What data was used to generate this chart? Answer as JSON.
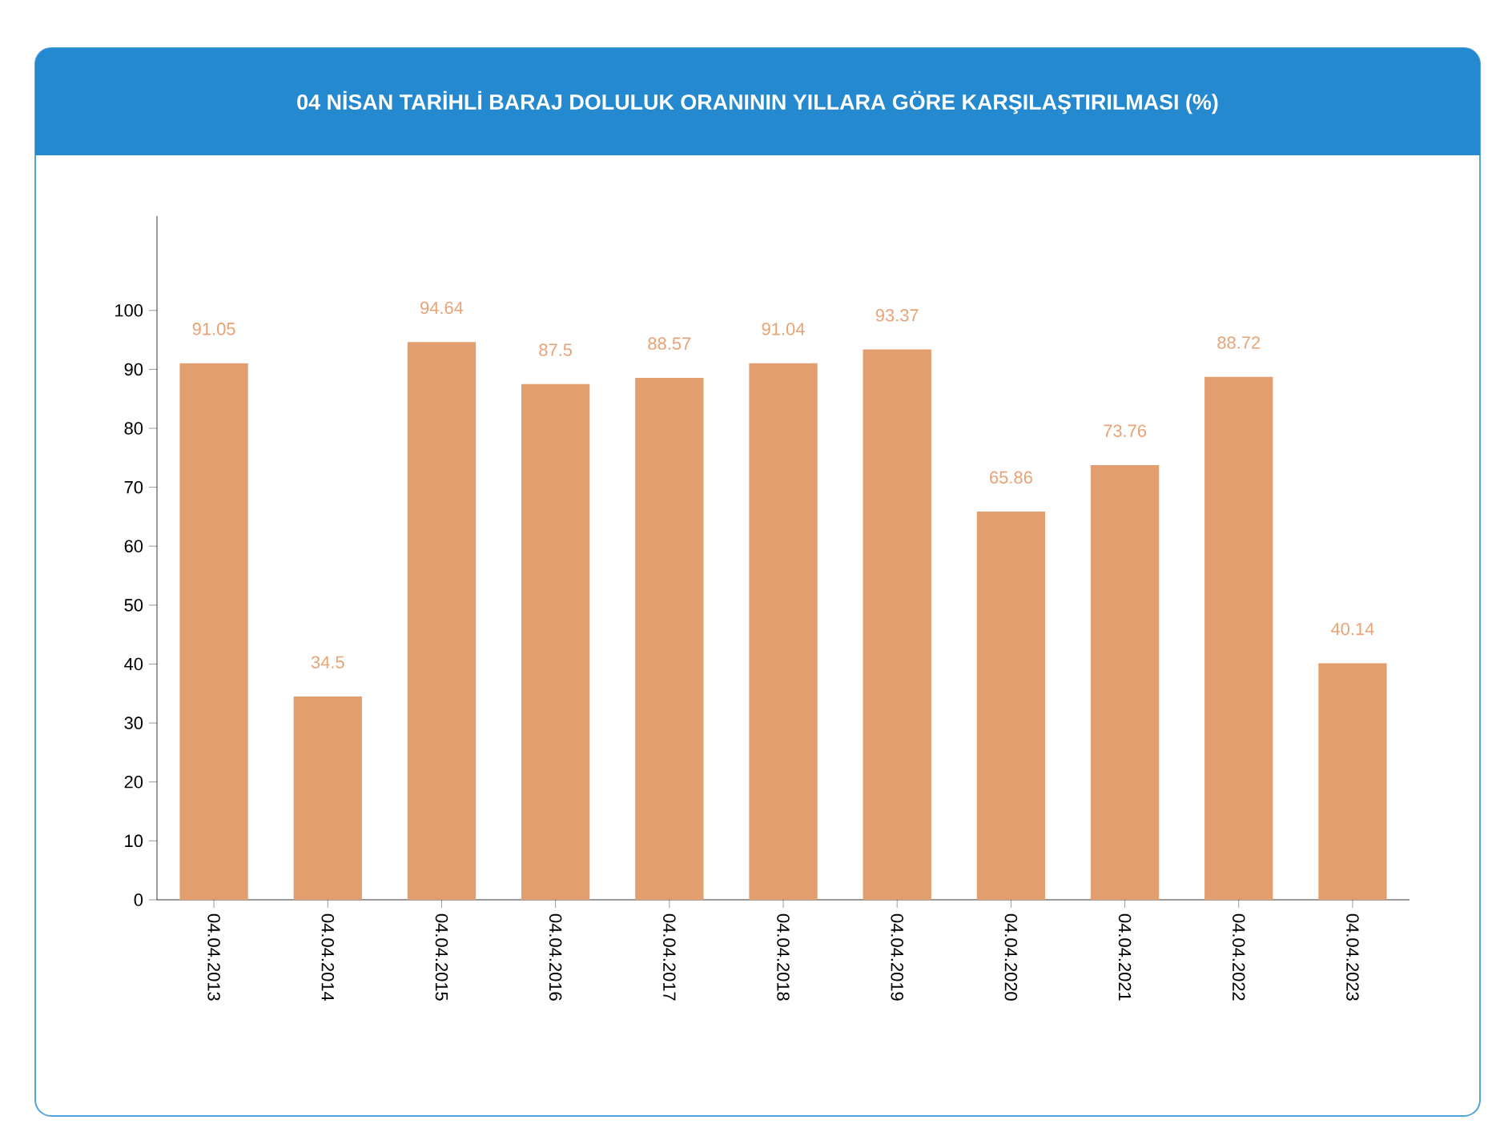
{
  "chart_data": {
    "type": "bar",
    "title": "04 NİSAN TARİHLİ BARAJ DOLULUK ORANININ YILLARA GÖRE KARŞILAŞTIRILMASI (%)",
    "categories": [
      "04.04.2013",
      "04.04.2014",
      "04.04.2015",
      "04.04.2016",
      "04.04.2017",
      "04.04.2018",
      "04.04.2019",
      "04.04.2020",
      "04.04.2021",
      "04.04.2022",
      "04.04.2023"
    ],
    "values": [
      91.05,
      34.5,
      94.64,
      87.5,
      88.57,
      91.04,
      93.37,
      65.86,
      73.76,
      88.72,
      40.14
    ],
    "color": "#e29e6e",
    "ylim": [
      0,
      116
    ],
    "yticks": [
      0,
      10,
      20,
      30,
      40,
      50,
      60,
      70,
      80,
      90,
      100
    ],
    "data_labels": true
  }
}
